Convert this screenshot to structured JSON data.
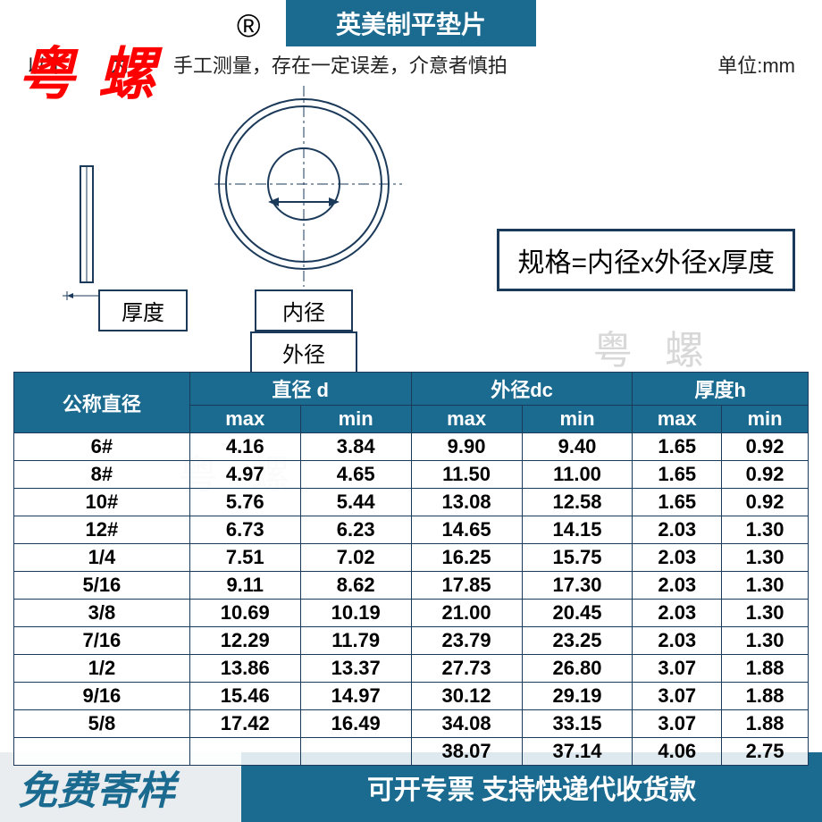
{
  "title": "英美制平垫片",
  "subtitle_left": "以下",
  "subtitle_mid": "为",
  "subtitle_right": "手工测量，存在一定误差，介意者慎拍",
  "unit_label": "单位:mm",
  "logo": "粤 螺",
  "reg_mark": "®",
  "labels": {
    "thickness": "厚度",
    "inner": "内径",
    "outer": "外径"
  },
  "spec_formula": "规格=内径x外径x厚度",
  "watermark": "粤 螺",
  "table": {
    "headers": {
      "nominal": "公称直径",
      "diameter_d": "直径 d",
      "outer_dc": "外径dc",
      "thickness_h": "厚度h",
      "max": "max",
      "min": "min"
    },
    "rows": [
      {
        "n": "6#",
        "dmax": "4.16",
        "dmin": "3.84",
        "dcmax": "9.90",
        "dcmin": "9.40",
        "hmax": "1.65",
        "hmin": "0.92"
      },
      {
        "n": "8#",
        "dmax": "4.97",
        "dmin": "4.65",
        "dcmax": "11.50",
        "dcmin": "11.00",
        "hmax": "1.65",
        "hmin": "0.92"
      },
      {
        "n": "10#",
        "dmax": "5.76",
        "dmin": "5.44",
        "dcmax": "13.08",
        "dcmin": "12.58",
        "hmax": "1.65",
        "hmin": "0.92"
      },
      {
        "n": "12#",
        "dmax": "6.73",
        "dmin": "6.23",
        "dcmax": "14.65",
        "dcmin": "14.15",
        "hmax": "2.03",
        "hmin": "1.30"
      },
      {
        "n": "1/4",
        "dmax": "7.51",
        "dmin": "7.02",
        "dcmax": "16.25",
        "dcmin": "15.75",
        "hmax": "2.03",
        "hmin": "1.30"
      },
      {
        "n": "5/16",
        "dmax": "9.11",
        "dmin": "8.62",
        "dcmax": "17.85",
        "dcmin": "17.30",
        "hmax": "2.03",
        "hmin": "1.30"
      },
      {
        "n": "3/8",
        "dmax": "10.69",
        "dmin": "10.19",
        "dcmax": "21.00",
        "dcmin": "20.45",
        "hmax": "2.03",
        "hmin": "1.30"
      },
      {
        "n": "7/16",
        "dmax": "12.29",
        "dmin": "11.79",
        "dcmax": "23.79",
        "dcmin": "23.25",
        "hmax": "2.03",
        "hmin": "1.30"
      },
      {
        "n": "1/2",
        "dmax": "13.86",
        "dmin": "13.37",
        "dcmax": "27.73",
        "dcmin": "26.80",
        "hmax": "3.07",
        "hmin": "1.88"
      },
      {
        "n": "9/16",
        "dmax": "15.46",
        "dmin": "14.97",
        "dcmax": "30.12",
        "dcmin": "29.19",
        "hmax": "3.07",
        "hmin": "1.88"
      },
      {
        "n": "5/8",
        "dmax": "17.42",
        "dmin": "16.49",
        "dcmax": "34.08",
        "dcmin": "33.15",
        "hmax": "3.07",
        "hmin": "1.88"
      },
      {
        "n": "",
        "dmax": "",
        "dmin": "",
        "dcmax": "38.07",
        "dcmin": "37.14",
        "hmax": "4.06",
        "hmin": "2.75"
      }
    ]
  },
  "footer": {
    "left": "免费寄样",
    "right": "可开专票 支持快递代收货款"
  },
  "colors": {
    "header_bg": "#1b6a8f",
    "border": "#1b3a5a",
    "logo_red": "#ff0000",
    "watermark": "#d8d8d8"
  }
}
